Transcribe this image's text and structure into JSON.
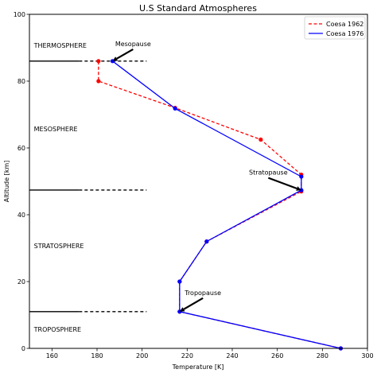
{
  "chart_data": {
    "type": "line",
    "title": "U.S Standard Atmospheres",
    "xlabel": "Temperature [K]",
    "ylabel": "Altitude [km]",
    "xlim": [
      150,
      300
    ],
    "ylim": [
      0,
      100
    ],
    "xticks": [
      160,
      180,
      200,
      220,
      240,
      260,
      280,
      300
    ],
    "yticks": [
      0,
      20,
      40,
      60,
      80,
      100
    ],
    "grid": false,
    "legend_position": "top-right",
    "series": [
      {
        "name": "Coesa 1962",
        "color": "#ff0000",
        "line_style": "dashed",
        "marker": "circle",
        "x": [
          288.15,
          216.65,
          216.65,
          228.65,
          270.65,
          270.65,
          252.65,
          214.65,
          180.65,
          180.65
        ],
        "y": [
          0,
          11,
          20,
          32,
          47,
          52,
          62.5,
          72,
          80,
          86
        ]
      },
      {
        "name": "Coesa 1976",
        "color": "#0000ff",
        "line_style": "solid",
        "marker": "circle",
        "x": [
          288.15,
          216.65,
          216.65,
          228.65,
          270.65,
          270.65,
          214.65,
          186.87
        ],
        "y": [
          0,
          11,
          20,
          32,
          47.35,
          51.41,
          71.8,
          86
        ]
      }
    ],
    "layer_boundaries": [
      {
        "altitude": 11,
        "x_solid_end": 172,
        "x_dash_end": 202
      },
      {
        "altitude": 47.4,
        "x_solid_end": 172,
        "x_dash_end": 202
      },
      {
        "altitude": 86,
        "x_solid_end": 172,
        "x_dash_end": 202
      }
    ],
    "layer_labels": [
      {
        "text": "THERMOSPHERE",
        "x": 152,
        "y": 90
      },
      {
        "text": "MESOSPHERE",
        "x": 152,
        "y": 65
      },
      {
        "text": "STRATOSPHERE",
        "x": 152,
        "y": 30
      },
      {
        "text": "TROPOSPHERE",
        "x": 152,
        "y": 5
      }
    ],
    "annotations": [
      {
        "text": "Mesopause",
        "text_x": 196,
        "text_y": 90.5,
        "arrow_x": 186.87,
        "arrow_y": 86
      },
      {
        "text": "Stratopause",
        "text_x": 256,
        "text_y": 52,
        "arrow_x": 270.65,
        "arrow_y": 47.35
      },
      {
        "text": "Tropopause",
        "text_x": 227,
        "text_y": 16,
        "arrow_x": 216.65,
        "arrow_y": 11
      }
    ]
  }
}
